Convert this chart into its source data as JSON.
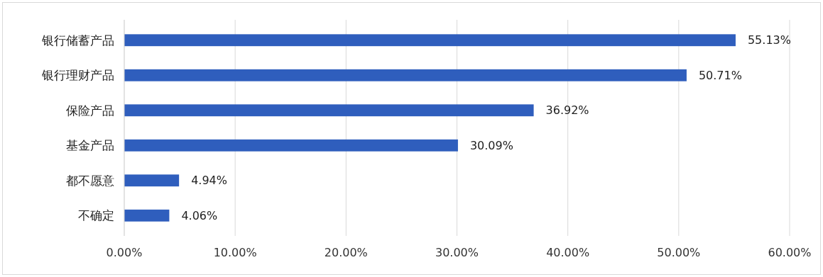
{
  "chart_data": {
    "type": "bar",
    "orientation": "horizontal",
    "categories": [
      "银行储蓄产品",
      "银行理财产品",
      "保险产品",
      "基金产品",
      "都不愿意",
      "不确定"
    ],
    "values": [
      55.13,
      50.71,
      36.92,
      30.09,
      4.94,
      4.06
    ],
    "value_labels": [
      "55.13%",
      "50.71%",
      "36.92%",
      "30.09%",
      "4.94%",
      "4.06%"
    ],
    "color": "#2f5ebd",
    "xlim": [
      0,
      60
    ],
    "xticks": [
      {
        "value": 0,
        "label": "0.00%"
      },
      {
        "value": 10,
        "label": "10.00%"
      },
      {
        "value": 20,
        "label": "20.00%"
      },
      {
        "value": 30,
        "label": "30.00%"
      },
      {
        "value": 40,
        "label": "40.00%"
      },
      {
        "value": 50,
        "label": "50.00%"
      },
      {
        "value": 60,
        "label": "60.00%"
      }
    ],
    "grid": "x"
  }
}
